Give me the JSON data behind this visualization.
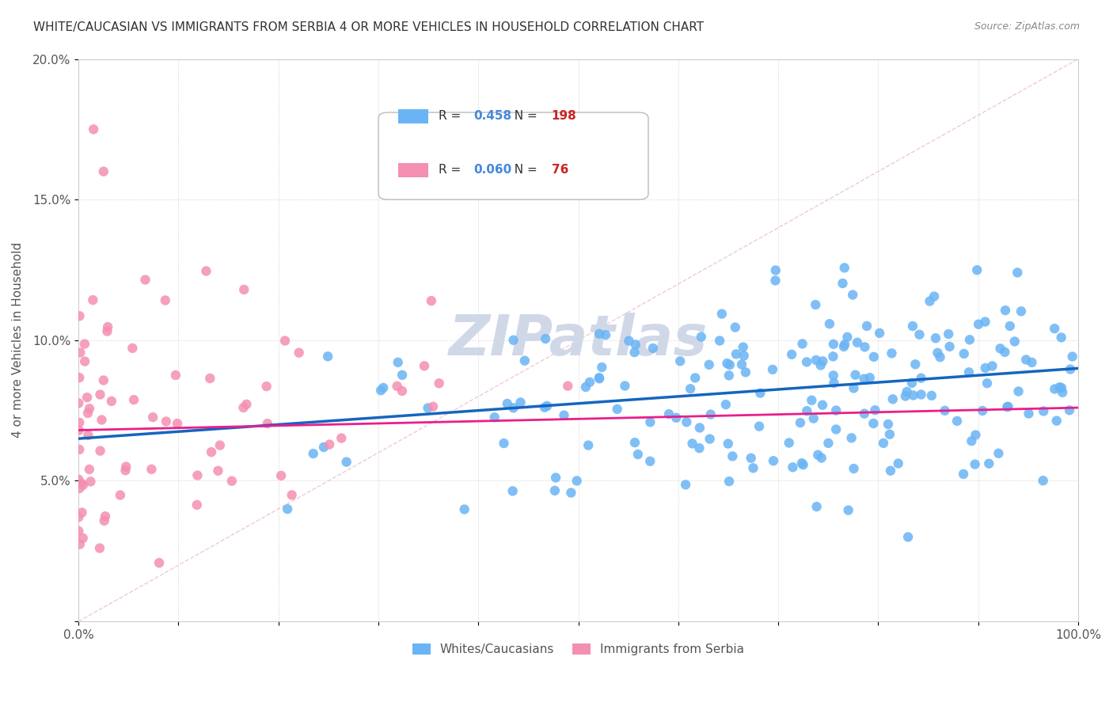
{
  "title": "WHITE/CAUCASIAN VS IMMIGRANTS FROM SERBIA 4 OR MORE VEHICLES IN HOUSEHOLD CORRELATION CHART",
  "source": "Source: ZipAtlas.com",
  "xlabel": "",
  "ylabel": "4 or more Vehicles in Household",
  "xlim": [
    0,
    100
  ],
  "ylim": [
    0,
    20
  ],
  "blue_color": "#6ab4f5",
  "pink_color": "#f48fb1",
  "blue_line_color": "#1565c0",
  "pink_line_color": "#e91e8c",
  "ref_line_color": "#e8b4c8",
  "legend_R1": "0.458",
  "legend_N1": "198",
  "legend_R2": "0.060",
  "legend_N2": "76",
  "watermark": "ZIPatlas",
  "watermark_color": "#d0d8e8",
  "background_color": "#ffffff",
  "blue_slope": 0.025,
  "blue_intercept": 6.5,
  "pink_slope": 0.008,
  "pink_intercept": 6.8,
  "seed": 42
}
